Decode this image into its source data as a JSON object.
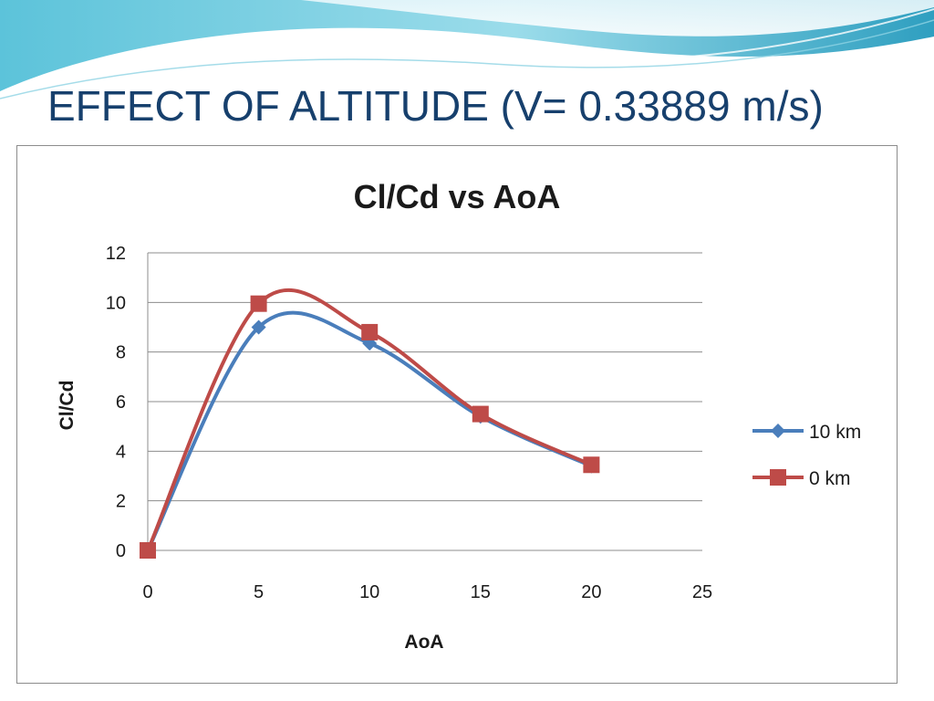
{
  "slide": {
    "title": "EFFECT OF ALTITUDE (V= 0.33889 m/s)"
  },
  "colors": {
    "title_text": "#17406d",
    "wave_light": "#bfe6f0",
    "wave_mid": "#7fd0e0",
    "wave_dark": "#2b9fbe",
    "grid": "#8c8c8c"
  },
  "chart_data": {
    "type": "line",
    "title": "Cl/Cd vs AoA",
    "xlabel": "AoA",
    "ylabel": "Cl/Cd",
    "xlim": [
      0,
      25
    ],
    "ylim": [
      0,
      12
    ],
    "x_ticks": [
      0,
      5,
      10,
      15,
      20,
      25
    ],
    "y_ticks": [
      0,
      2,
      4,
      6,
      8,
      10,
      12
    ],
    "grid": "horizontal",
    "legend_position": "right",
    "smooth": true,
    "series": [
      {
        "name": "10 km",
        "marker": "diamond",
        "color": "#4a7ebb",
        "x": [
          0,
          5,
          10,
          15,
          20
        ],
        "y": [
          0,
          9.0,
          8.35,
          5.4,
          3.4
        ]
      },
      {
        "name": "0 km",
        "marker": "square",
        "color": "#be4b48",
        "x": [
          0,
          5,
          10,
          15,
          20
        ],
        "y": [
          0,
          9.95,
          8.8,
          5.5,
          3.45
        ]
      }
    ]
  }
}
